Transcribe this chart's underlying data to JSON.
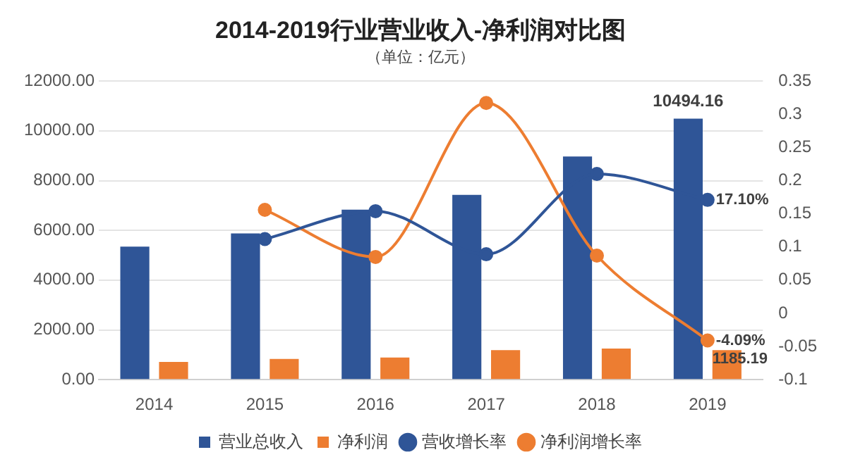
{
  "chart_data": {
    "type": "bar",
    "title": "2014-2019行业营业收入-净利润对比图",
    "subtitle": "（单位：亿元）",
    "categories": [
      "2014",
      "2015",
      "2016",
      "2017",
      "2018",
      "2019"
    ],
    "series": [
      {
        "name": "营业总收入",
        "color": "#2f5597",
        "values": [
          5350,
          5880,
          6830,
          7430,
          8970,
          10494.16
        ],
        "value_labels": [
          null,
          null,
          null,
          null,
          null,
          "10494.16"
        ]
      },
      {
        "name": "净利润",
        "color": "#ed7d31",
        "values": [
          710,
          830,
          890,
          1190,
          1250,
          1185.19
        ],
        "value_labels": [
          null,
          null,
          null,
          null,
          null,
          "1185.19"
        ]
      },
      {
        "name": "营收增长率",
        "type": "line",
        "axis": "y2",
        "color": "#2f5597",
        "values": [
          null,
          0.112,
          0.154,
          0.089,
          0.21,
          0.171
        ],
        "value_labels": [
          null,
          null,
          null,
          null,
          null,
          "17.10%"
        ]
      },
      {
        "name": "净利润增长率",
        "type": "line",
        "axis": "y2",
        "color": "#ed7d31",
        "values": [
          null,
          0.156,
          0.085,
          0.317,
          0.087,
          -0.0409
        ],
        "value_labels": [
          null,
          null,
          null,
          null,
          null,
          "-4.09%"
        ]
      }
    ],
    "ylim": [
      0,
      12000
    ],
    "yticks": [
      {
        "value": 0,
        "label": "0.00"
      },
      {
        "value": 2000,
        "label": "2000.00"
      },
      {
        "value": 4000,
        "label": "4000.00"
      },
      {
        "value": 6000,
        "label": "6000.00"
      },
      {
        "value": 8000,
        "label": "8000.00"
      },
      {
        "value": 10000,
        "label": "10000.00"
      },
      {
        "value": 12000,
        "label": "12000.00"
      }
    ],
    "y2lim": [
      -0.1,
      0.35
    ],
    "y2ticks": [
      -0.1,
      -0.05,
      0,
      0.05,
      0.1,
      0.15,
      0.2,
      0.25,
      0.3,
      0.35
    ],
    "grid": "y",
    "legend": "bottom",
    "marker": "circle"
  }
}
